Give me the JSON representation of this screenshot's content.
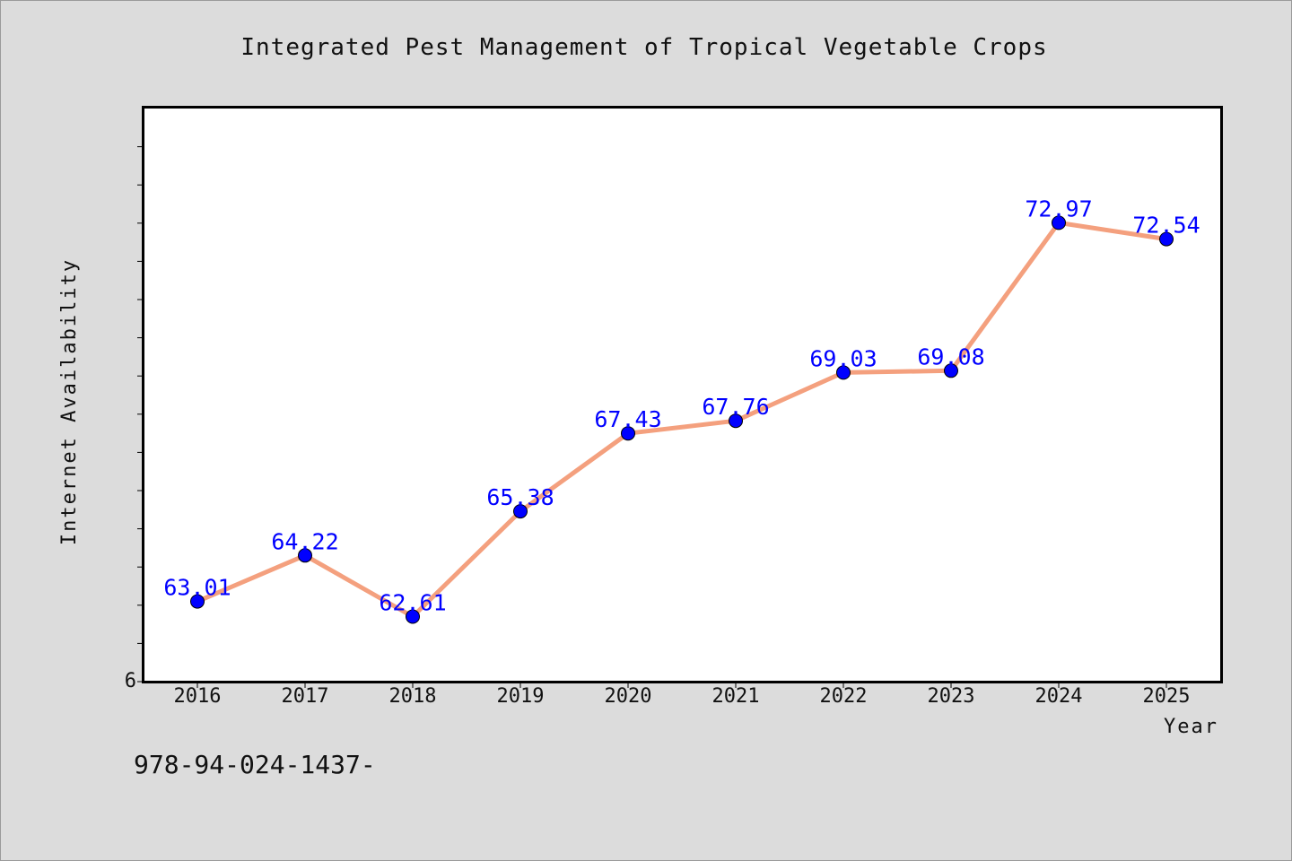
{
  "chart_data": {
    "type": "line",
    "title": "Integrated Pest Management of Tropical Vegetable Crops",
    "xlabel": "Year",
    "ylabel": "Internet Availability",
    "categories": [
      "2016",
      "2017",
      "2018",
      "2019",
      "2020",
      "2021",
      "2022",
      "2023",
      "2024",
      "2025"
    ],
    "series": [
      {
        "values": [
          63.01,
          64.22,
          62.61,
          65.38,
          67.43,
          67.76,
          69.03,
          69.08,
          72.97,
          72.54
        ]
      }
    ],
    "data_labels": [
      "63.01",
      "64.22",
      "62.61",
      "65.38",
      "67.43",
      "67.76",
      "69.03",
      "69.08",
      "72.97",
      "72.54"
    ],
    "ylim": [
      60.9,
      76.0
    ],
    "y_tick_label": "6",
    "grid": false,
    "legend": "none",
    "colors": {
      "line": "#f4a07e",
      "marker": "#0000ff",
      "labels": "#0000ff"
    }
  },
  "footer": {
    "isbn": "978-94-024-1437-"
  }
}
